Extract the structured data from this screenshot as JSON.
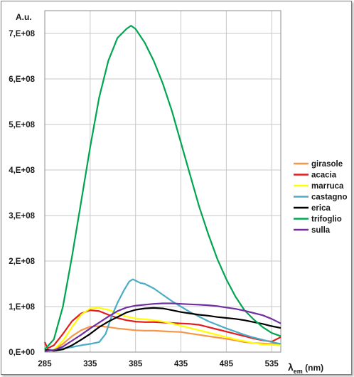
{
  "chart_data": {
    "type": "line",
    "ylabel": "A.u.",
    "xlabel_main": "λ",
    "xlabel_sub": "em",
    "xlabel_unit": " (nm)",
    "xlim": [
      285,
      545
    ],
    "ylim": [
      0,
      750000000
    ],
    "x_ticks": [
      285,
      335,
      385,
      435,
      485,
      535
    ],
    "y_ticks": [
      {
        "value": 0,
        "label": "0,E+00"
      },
      {
        "value": 100000000,
        "label": "1,E+08"
      },
      {
        "value": 200000000,
        "label": "2,E+08"
      },
      {
        "value": 300000000,
        "label": "3,E+08"
      },
      {
        "value": 400000000,
        "label": "4,E+08"
      },
      {
        "value": 500000000,
        "label": "5,E+08"
      },
      {
        "value": 600000000,
        "label": "6,E+08"
      },
      {
        "value": 700000000,
        "label": "7,E+08"
      }
    ],
    "grid": true,
    "legend_position": "right",
    "series": [
      {
        "name": "girasole",
        "color": "#f79646",
        "x": [
          285,
          295,
          305,
          315,
          325,
          335,
          345,
          355,
          365,
          375,
          385,
          395,
          405,
          415,
          425,
          435,
          445,
          455,
          465,
          475,
          485,
          495,
          505,
          515,
          525,
          535,
          545
        ],
        "y": [
          2000000,
          5000000,
          18000000,
          35000000,
          48000000,
          56000000,
          57000000,
          55000000,
          52000000,
          50000000,
          48000000,
          47000000,
          47000000,
          46000000,
          45000000,
          44000000,
          41000000,
          38000000,
          35000000,
          32000000,
          29000000,
          26000000,
          22000000,
          20000000,
          19000000,
          18000000,
          18000000
        ]
      },
      {
        "name": "acacia",
        "color": "#e41a1c",
        "x": [
          285,
          288,
          295,
          305,
          315,
          325,
          335,
          345,
          355,
          365,
          375,
          385,
          395,
          405,
          415,
          425,
          435,
          445,
          455,
          465,
          475,
          485,
          495,
          505,
          515,
          525,
          535,
          545
        ],
        "y": [
          22000000,
          8000000,
          15000000,
          40000000,
          68000000,
          85000000,
          92000000,
          90000000,
          82000000,
          75000000,
          70000000,
          67000000,
          66000000,
          66000000,
          65000000,
          64000000,
          63000000,
          62000000,
          60000000,
          55000000,
          50000000,
          45000000,
          40000000,
          35000000,
          30000000,
          26000000,
          23000000,
          33000000
        ]
      },
      {
        "name": "marruca",
        "color": "#ffff00",
        "x": [
          285,
          295,
          305,
          315,
          325,
          335,
          345,
          355,
          365,
          375,
          385,
          395,
          405,
          415,
          425,
          435,
          445,
          455,
          465,
          475,
          485,
          495,
          505,
          515,
          525,
          535,
          545
        ],
        "y": [
          3000000,
          5000000,
          25000000,
          55000000,
          82000000,
          96000000,
          97000000,
          93000000,
          85000000,
          78000000,
          74000000,
          72000000,
          70000000,
          67000000,
          63000000,
          58000000,
          53000000,
          48000000,
          43000000,
          38000000,
          33000000,
          28000000,
          24000000,
          20000000,
          17000000,
          16000000,
          15000000
        ]
      },
      {
        "name": "castagno",
        "color": "#4bacc6",
        "x": [
          285,
          295,
          305,
          315,
          325,
          335,
          345,
          352,
          358,
          365,
          372,
          378,
          382,
          385,
          390,
          395,
          405,
          415,
          425,
          435,
          445,
          455,
          465,
          475,
          485,
          495,
          505,
          515,
          525,
          535,
          545
        ],
        "y": [
          4000000,
          5000000,
          8000000,
          11000000,
          15000000,
          18000000,
          22000000,
          40000000,
          75000000,
          108000000,
          135000000,
          155000000,
          160000000,
          157000000,
          152000000,
          150000000,
          140000000,
          126000000,
          112000000,
          100000000,
          88000000,
          78000000,
          68000000,
          60000000,
          52000000,
          45000000,
          38000000,
          32000000,
          27000000,
          22000000,
          18000000
        ]
      },
      {
        "name": "erica",
        "color": "#000000",
        "x": [
          285,
          295,
          305,
          315,
          325,
          335,
          345,
          355,
          365,
          375,
          385,
          395,
          405,
          415,
          425,
          435,
          445,
          455,
          465,
          475,
          485,
          495,
          505,
          515,
          525,
          535,
          545
        ],
        "y": [
          5000000,
          3000000,
          6000000,
          15000000,
          27000000,
          40000000,
          55000000,
          67000000,
          77000000,
          87000000,
          93000000,
          96000000,
          97000000,
          96000000,
          92000000,
          88000000,
          85000000,
          82000000,
          80000000,
          77000000,
          75000000,
          73000000,
          70000000,
          66000000,
          62000000,
          57000000,
          53000000
        ]
      },
      {
        "name": "trifoglio",
        "color": "#00a550",
        "x": [
          285,
          295,
          305,
          315,
          325,
          335,
          345,
          355,
          365,
          375,
          380,
          385,
          395,
          405,
          415,
          425,
          435,
          445,
          455,
          465,
          475,
          485,
          495,
          505,
          515,
          525,
          535,
          545
        ],
        "y": [
          6000000,
          28000000,
          100000000,
          210000000,
          330000000,
          450000000,
          560000000,
          640000000,
          690000000,
          710000000,
          717000000,
          710000000,
          680000000,
          640000000,
          590000000,
          530000000,
          460000000,
          390000000,
          320000000,
          260000000,
          205000000,
          160000000,
          122000000,
          92000000,
          72000000,
          55000000,
          42000000,
          35000000
        ]
      },
      {
        "name": "sulla",
        "color": "#7030a0",
        "x": [
          285,
          295,
          305,
          315,
          325,
          335,
          345,
          355,
          365,
          375,
          385,
          395,
          405,
          415,
          425,
          435,
          445,
          455,
          465,
          475,
          485,
          495,
          505,
          515,
          525,
          535,
          545
        ],
        "y": [
          2000000,
          4000000,
          12000000,
          25000000,
          38000000,
          52000000,
          65000000,
          78000000,
          90000000,
          98000000,
          102000000,
          104000000,
          106000000,
          107000000,
          107000000,
          106000000,
          105000000,
          104000000,
          103000000,
          101000000,
          98000000,
          95000000,
          91000000,
          86000000,
          81000000,
          73000000,
          63000000
        ]
      }
    ]
  }
}
